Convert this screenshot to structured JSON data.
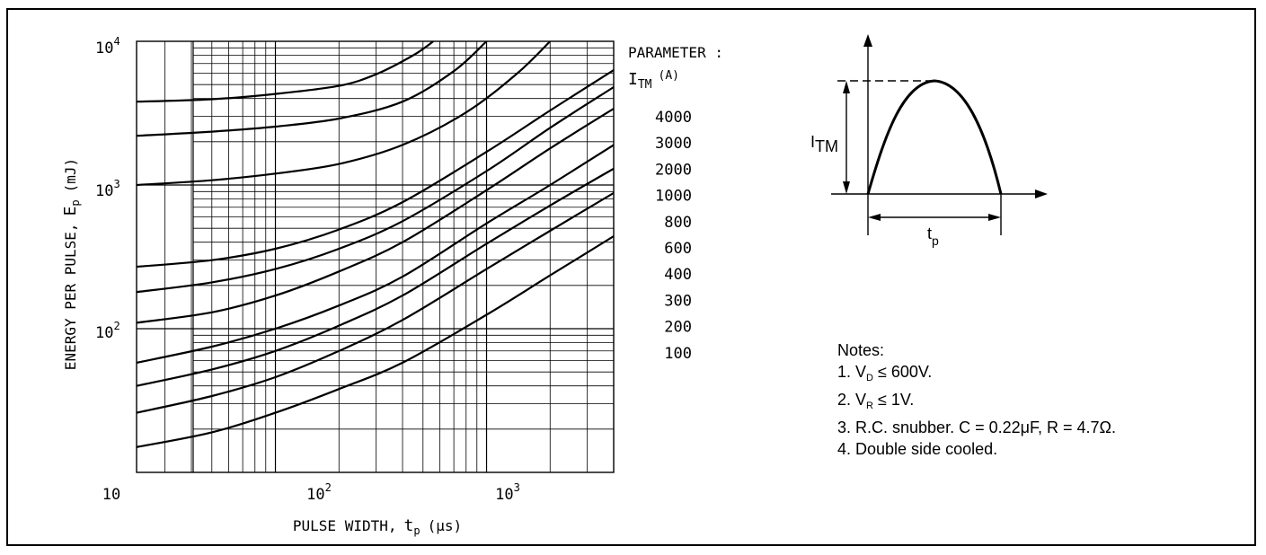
{
  "chart_data": {
    "type": "line",
    "scale": "log-log",
    "xlabel_prefix": "PULSE WIDTH,",
    "xlabel_var": "t",
    "xlabel_sub": "p",
    "xlabel_unit": "(μs)",
    "ylabel_prefix": "ENERGY PER PULSE,",
    "ylabel_var": "E",
    "ylabel_sub": "p",
    "ylabel_unit": "(mJ)",
    "xlim": [
      22,
      4000
    ],
    "ylim": [
      10,
      10000
    ],
    "x_tick_labels": [
      {
        "value": 10,
        "base": "10",
        "exp": ""
      },
      {
        "value": 100,
        "base": "10",
        "exp": "2"
      },
      {
        "value": 1000,
        "base": "10",
        "exp": "3"
      }
    ],
    "y_tick_labels": [
      {
        "value": 10000,
        "base": "10",
        "exp": "4"
      },
      {
        "value": 1000,
        "base": "10",
        "exp": "3"
      },
      {
        "value": 100,
        "base": "10",
        "exp": "2"
      }
    ],
    "grid": true,
    "legend": {
      "title": "PARAMETER :",
      "param_var": "I",
      "param_sub": "TM",
      "param_unit": "(A)",
      "entries": [
        "4000",
        "3000",
        "2000",
        "1000",
        "800",
        "600",
        "400",
        "300",
        "200",
        "100"
      ]
    },
    "series": [
      {
        "name": "4000",
        "x": [
          22,
          50,
          100,
          200,
          300,
          450,
          560
        ],
        "y": [
          3800,
          3950,
          4300,
          4900,
          5900,
          8000,
          10000
        ]
      },
      {
        "name": "3000",
        "x": [
          22,
          50,
          100,
          200,
          400,
          700,
          1000
        ],
        "y": [
          2200,
          2350,
          2550,
          2900,
          3800,
          6200,
          10000
        ]
      },
      {
        "name": "2000",
        "x": [
          22,
          50,
          100,
          200,
          400,
          800,
          1400,
          2000
        ],
        "y": [
          1000,
          1080,
          1200,
          1400,
          1900,
          3200,
          6000,
          10000
        ]
      },
      {
        "name": "1000",
        "x": [
          22,
          50,
          100,
          200,
          400,
          1000,
          2000,
          4000
        ],
        "y": [
          270,
          300,
          360,
          490,
          760,
          1700,
          3300,
          6300
        ]
      },
      {
        "name": "800",
        "x": [
          22,
          50,
          100,
          200,
          400,
          1000,
          2000,
          4000
        ],
        "y": [
          180,
          210,
          260,
          360,
          560,
          1250,
          2500,
          4800
        ]
      },
      {
        "name": "600",
        "x": [
          22,
          50,
          100,
          200,
          400,
          1000,
          2000,
          4000
        ],
        "y": [
          110,
          130,
          170,
          250,
          400,
          920,
          1800,
          3400
        ]
      },
      {
        "name": "400",
        "x": [
          22,
          50,
          100,
          200,
          400,
          1000,
          2000,
          4000
        ],
        "y": [
          58,
          75,
          100,
          145,
          230,
          540,
          1000,
          1900
        ]
      },
      {
        "name": "300",
        "x": [
          22,
          50,
          100,
          200,
          400,
          1000,
          2000,
          4000
        ],
        "y": [
          40,
          52,
          70,
          105,
          170,
          390,
          720,
          1300
        ]
      },
      {
        "name": "200",
        "x": [
          22,
          50,
          100,
          200,
          400,
          1000,
          2000,
          4000
        ],
        "y": [
          26,
          34,
          46,
          70,
          115,
          260,
          480,
          880
        ]
      },
      {
        "name": "100",
        "x": [
          22,
          50,
          100,
          200,
          400,
          1000,
          2000,
          4000
        ],
        "y": [
          15,
          19,
          26,
          38,
          58,
          125,
          235,
          440
        ]
      }
    ]
  },
  "waveform": {
    "amplitude_label_main": "I",
    "amplitude_label_sub": "TM",
    "width_label_main": "t",
    "width_label_sub": "p"
  },
  "notes": {
    "heading": "Notes:",
    "n1_prefix": "1. V",
    "n1_sub": "D",
    "n1_suffix": " ≤ 600V.",
    "n2_prefix": "2. V",
    "n2_sub": "R",
    "n2_suffix": " ≤ 1V.",
    "n3": "3. R.C. snubber. C = 0.22μF, R = 4.7Ω.",
    "n4": "4. Double side cooled."
  }
}
